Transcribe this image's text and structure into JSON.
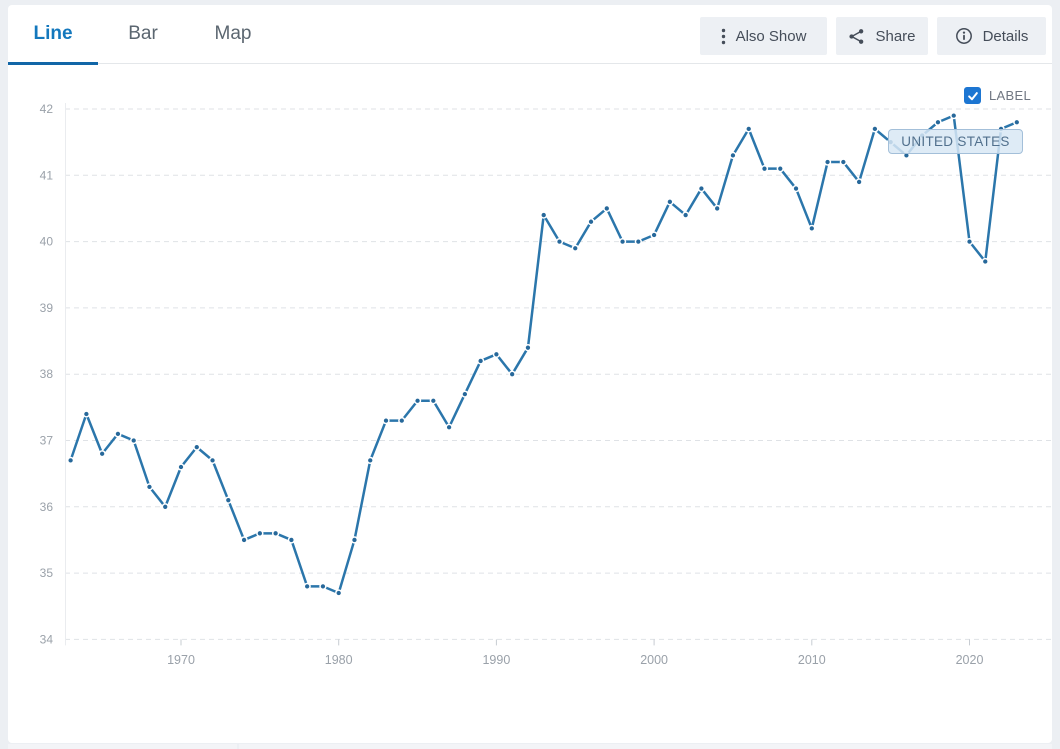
{
  "tabs": [
    {
      "label": "Line",
      "active": true
    },
    {
      "label": "Bar",
      "active": false
    },
    {
      "label": "Map",
      "active": false
    }
  ],
  "toolbar": {
    "also_show": "Also Show",
    "share": "Share",
    "details": "Details"
  },
  "legend": {
    "checkbox_label": "LABEL",
    "checkbox_checked": true,
    "series_label": "UNITED STATES"
  },
  "colors": {
    "accent_tab": "#1478bd",
    "tab_underline": "#1166a7",
    "line": "#2b76ab",
    "point": "#27689a",
    "grid": "#dfe2e6",
    "axis_text": "#9aa1a9",
    "tick": "#c7ccd2",
    "checkbox_blue": "#1d76d2",
    "label_box_bg": "rgba(216,231,244,0.85)",
    "label_box_border": "#a3bfd9",
    "label_box_text": "#51708d"
  },
  "chart_data": {
    "type": "line",
    "title": "",
    "xlabel": "",
    "ylabel": "",
    "x": [
      1963,
      1964,
      1965,
      1966,
      1967,
      1968,
      1969,
      1970,
      1971,
      1972,
      1973,
      1974,
      1975,
      1976,
      1977,
      1978,
      1979,
      1980,
      1981,
      1982,
      1983,
      1984,
      1985,
      1986,
      1987,
      1988,
      1989,
      1990,
      1991,
      1992,
      1993,
      1994,
      1995,
      1996,
      1997,
      1998,
      1999,
      2000,
      2001,
      2002,
      2003,
      2004,
      2005,
      2006,
      2007,
      2008,
      2009,
      2010,
      2011,
      2012,
      2013,
      2014,
      2015,
      2016,
      2017,
      2018,
      2019,
      2020,
      2021,
      2022,
      2023
    ],
    "series": [
      {
        "name": "UNITED STATES",
        "values": [
          36.7,
          37.4,
          36.8,
          37.1,
          37.0,
          36.3,
          36.0,
          36.6,
          36.9,
          36.7,
          36.1,
          35.5,
          35.6,
          35.6,
          35.5,
          34.8,
          34.8,
          34.7,
          35.5,
          36.7,
          37.3,
          37.3,
          37.6,
          37.6,
          37.2,
          37.7,
          38.2,
          38.3,
          38.0,
          38.4,
          40.4,
          40.0,
          39.9,
          40.3,
          40.5,
          40.0,
          40.0,
          40.1,
          40.6,
          40.4,
          40.8,
          40.5,
          41.3,
          41.7,
          41.1,
          41.1,
          40.8,
          40.2,
          41.2,
          41.2,
          40.9,
          41.7,
          41.5,
          41.3,
          41.6,
          41.8,
          41.9,
          40.0,
          39.7,
          41.7,
          41.8
        ]
      }
    ],
    "xticks": [
      1970,
      1980,
      1990,
      2000,
      2010,
      2020
    ],
    "yticks": [
      34,
      35,
      36,
      37,
      38,
      39,
      40,
      41,
      42
    ],
    "ylim": [
      34,
      42
    ],
    "xlim": [
      1962.5,
      2025.5
    ],
    "grid": "horizontal-dashed",
    "legend_position": "top-right",
    "marker": "dot-with-white-halo"
  }
}
